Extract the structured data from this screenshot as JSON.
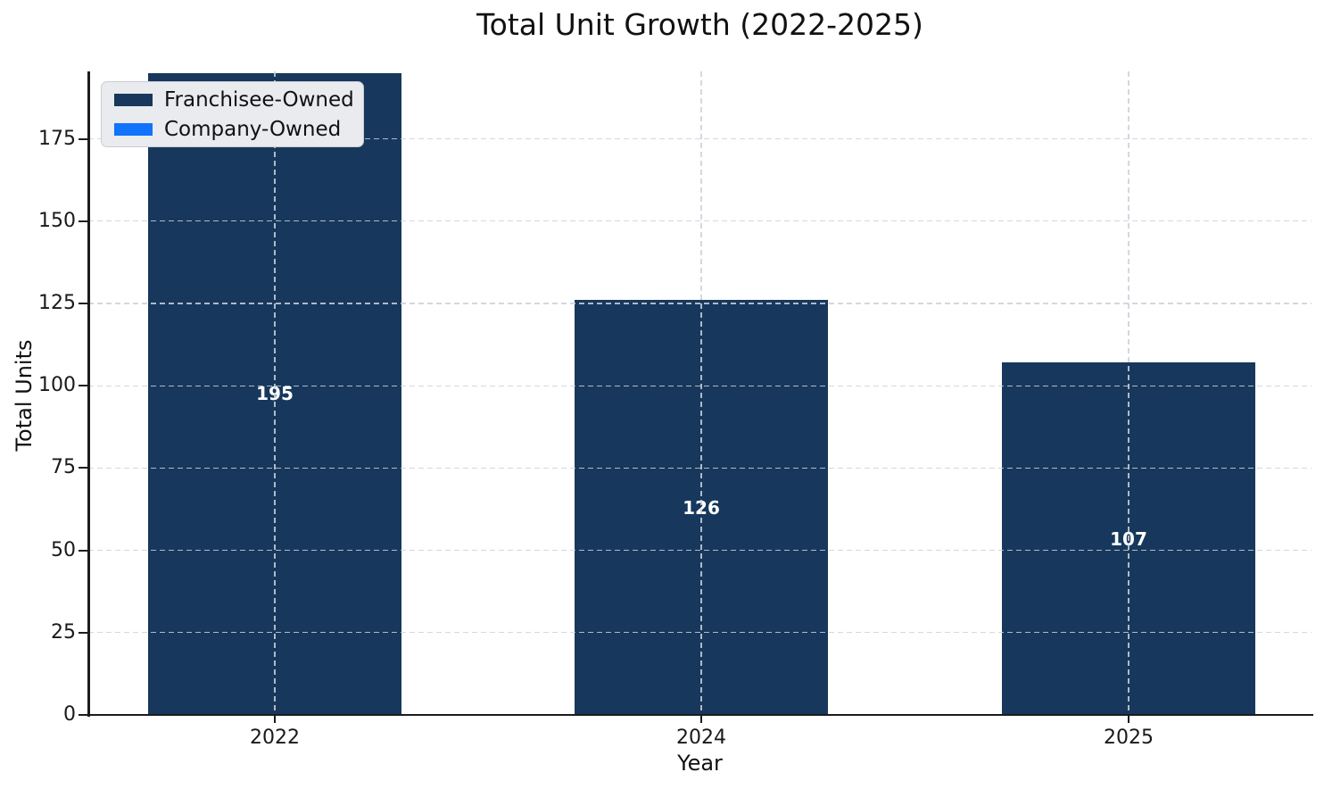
{
  "chart_data": {
    "type": "bar",
    "title": "Total Unit Growth (2022-2025)",
    "xlabel": "Year",
    "ylabel": "Total Units",
    "categories": [
      "2022",
      "2024",
      "2025"
    ],
    "series": [
      {
        "name": "Franchisee-Owned",
        "color": "#17385c",
        "values": [
          195,
          126,
          107
        ]
      },
      {
        "name": "Company-Owned",
        "color": "#1273fc",
        "values": []
      }
    ],
    "bar_value_labels": [
      "195",
      "126",
      "107"
    ],
    "yticks": [
      0,
      25,
      50,
      75,
      100,
      125,
      150,
      175
    ],
    "ylim": [
      0,
      195.5
    ],
    "grid": "dashed, drawn over bars",
    "legend_position": "upper-left",
    "colors": {
      "background": "#ffffff",
      "grid": "#cbd1da",
      "axis_spine": "#1c1c1c",
      "bar_label_text": "#ffffff",
      "legend_background": "#e9ebee",
      "legend_border": "#c9cdd2"
    }
  }
}
